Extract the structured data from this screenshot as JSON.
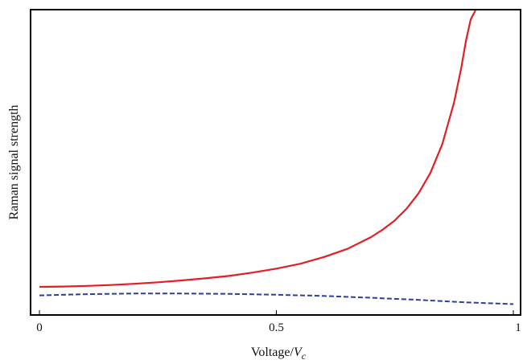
{
  "chart_data": {
    "type": "line",
    "title": "",
    "xlabel": "Voltage/V_c",
    "xlabel_parts": {
      "prefix": "Voltage/",
      "var": "V",
      "sub": "c"
    },
    "ylabel": "Raman signal strength",
    "xlim": [
      0,
      1
    ],
    "ylim": [
      0,
      1
    ],
    "y_ticks_shown": false,
    "grid": false,
    "legend": "none",
    "x_ticks": [
      {
        "value": 0,
        "label": "0"
      },
      {
        "value": 0.5,
        "label": "0.5"
      },
      {
        "value": 1,
        "label": "1"
      }
    ],
    "series": [
      {
        "style": "solid",
        "color": "#e31e24",
        "x": [
          0,
          0.05,
          0.1,
          0.15,
          0.2,
          0.25,
          0.3,
          0.35,
          0.4,
          0.45,
          0.5,
          0.55,
          0.6,
          0.65,
          0.7,
          0.725,
          0.75,
          0.775,
          0.8,
          0.825,
          0.85,
          0.875,
          0.89,
          0.9,
          0.91,
          0.92
        ],
        "y": [
          0.09,
          0.091,
          0.093,
          0.096,
          0.1,
          0.105,
          0.111,
          0.118,
          0.126,
          0.137,
          0.15,
          0.166,
          0.188,
          0.215,
          0.254,
          0.279,
          0.309,
          0.348,
          0.398,
          0.465,
          0.559,
          0.698,
          0.81,
          0.9,
          0.97,
          1.0
        ]
      },
      {
        "style": "dashed",
        "color": "#2e3d9a",
        "x": [
          0,
          0.1,
          0.2,
          0.3,
          0.4,
          0.5,
          0.6,
          0.7,
          0.8,
          0.9,
          1.0
        ],
        "y": [
          0.062,
          0.066,
          0.068,
          0.068,
          0.067,
          0.064,
          0.06,
          0.054,
          0.047,
          0.039,
          0.033
        ]
      }
    ]
  }
}
